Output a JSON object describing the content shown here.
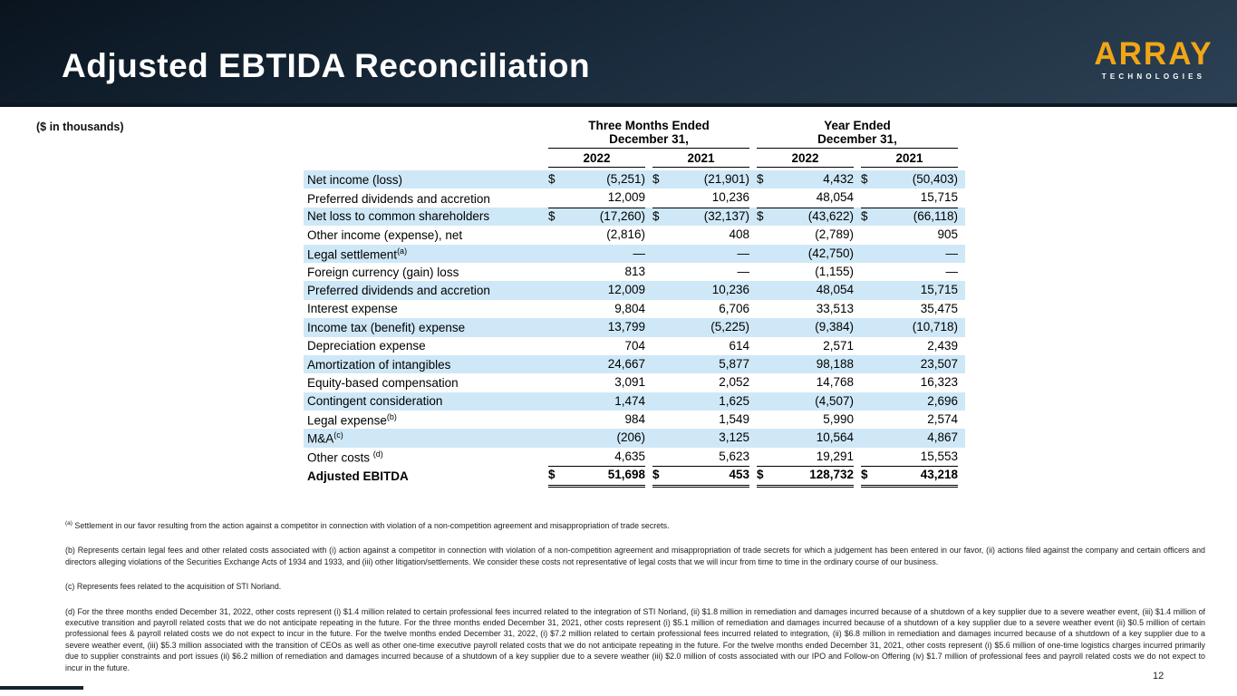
{
  "slide": {
    "title": "Adjusted EBTIDA Reconciliation",
    "units_label": "($ in thousands)",
    "page_number": "12"
  },
  "logo": {
    "name": "ARRAY",
    "sub": "TECHNOLOGIES"
  },
  "colors": {
    "band": "#18293a",
    "logo_orange": "#f2a516",
    "row_highlight": "#cfe8f7"
  },
  "table": {
    "col_groups": [
      {
        "line1": "Three Months Ended",
        "line2": "December 31,"
      },
      {
        "line1": "Year Ended",
        "line2": "December 31,"
      }
    ],
    "years": [
      "2022",
      "2021",
      "2022",
      "2021"
    ],
    "rows": [
      {
        "label": "Net income (loss)",
        "sup": "",
        "dollar": true,
        "highlight": true,
        "bold": false,
        "underline": "none",
        "values": [
          "(5,251)",
          "(21,901)",
          "4,432",
          "(50,403)"
        ]
      },
      {
        "label": "Preferred dividends and accretion",
        "sup": "",
        "dollar": false,
        "highlight": false,
        "bold": false,
        "underline": "single",
        "values": [
          "12,009",
          "10,236",
          "48,054",
          "15,715"
        ]
      },
      {
        "label": "Net loss to common shareholders",
        "sup": "",
        "dollar": true,
        "highlight": true,
        "bold": false,
        "underline": "none",
        "values": [
          "(17,260)",
          "(32,137)",
          "(43,622)",
          "(66,118)"
        ]
      },
      {
        "label": "Other income (expense), net",
        "sup": "",
        "dollar": false,
        "highlight": false,
        "bold": false,
        "underline": "none",
        "values": [
          "(2,816)",
          "408",
          "(2,789)",
          "905"
        ]
      },
      {
        "label": "Legal settlement",
        "sup": "(a)",
        "dollar": false,
        "highlight": true,
        "bold": false,
        "underline": "none",
        "values": [
          "—",
          "—",
          "(42,750)",
          "—"
        ]
      },
      {
        "label": "Foreign currency (gain) loss",
        "sup": "",
        "dollar": false,
        "highlight": false,
        "bold": false,
        "underline": "none",
        "values": [
          "813",
          "—",
          "(1,155)",
          "—"
        ]
      },
      {
        "label": "Preferred dividends and accretion",
        "sup": "",
        "dollar": false,
        "highlight": true,
        "bold": false,
        "underline": "none",
        "values": [
          "12,009",
          "10,236",
          "48,054",
          "15,715"
        ]
      },
      {
        "label": "Interest expense",
        "sup": "",
        "dollar": false,
        "highlight": false,
        "bold": false,
        "underline": "none",
        "values": [
          "9,804",
          "6,706",
          "33,513",
          "35,475"
        ]
      },
      {
        "label": "Income tax (benefit) expense",
        "sup": "",
        "dollar": false,
        "highlight": true,
        "bold": false,
        "underline": "none",
        "values": [
          "13,799",
          "(5,225)",
          "(9,384)",
          "(10,718)"
        ]
      },
      {
        "label": "Depreciation expense",
        "sup": "",
        "dollar": false,
        "highlight": false,
        "bold": false,
        "underline": "none",
        "values": [
          "704",
          "614",
          "2,571",
          "2,439"
        ]
      },
      {
        "label": "Amortization of intangibles",
        "sup": "",
        "dollar": false,
        "highlight": true,
        "bold": false,
        "underline": "none",
        "values": [
          "24,667",
          "5,877",
          "98,188",
          "23,507"
        ]
      },
      {
        "label": "Equity-based compensation",
        "sup": "",
        "dollar": false,
        "highlight": false,
        "bold": false,
        "underline": "none",
        "values": [
          "3,091",
          "2,052",
          "14,768",
          "16,323"
        ]
      },
      {
        "label": "Contingent consideration",
        "sup": "",
        "dollar": false,
        "highlight": true,
        "bold": false,
        "underline": "none",
        "values": [
          "1,474",
          "1,625",
          "(4,507)",
          "2,696"
        ]
      },
      {
        "label": "Legal expense",
        "sup": "(b)",
        "dollar": false,
        "highlight": false,
        "bold": false,
        "underline": "none",
        "values": [
          "984",
          "1,549",
          "5,990",
          "2,574"
        ]
      },
      {
        "label": "M&A",
        "sup": "(c)",
        "dollar": false,
        "highlight": true,
        "bold": false,
        "underline": "none",
        "values": [
          "(206)",
          "3,125",
          "10,564",
          "4,867"
        ]
      },
      {
        "label": "Other costs ",
        "sup": "(d)",
        "dollar": false,
        "highlight": false,
        "bold": false,
        "underline": "single",
        "values": [
          "4,635",
          "5,623",
          "19,291",
          "15,553"
        ]
      },
      {
        "label": "Adjusted EBITDA",
        "sup": "",
        "dollar": true,
        "highlight": false,
        "bold": true,
        "underline": "double",
        "values": [
          "51,698",
          "453",
          "128,732",
          "43,218"
        ]
      }
    ]
  },
  "footnotes": [
    {
      "marker": "(a)",
      "sup": true,
      "text": "Settlement in our favor resulting from the action against a competitor in connection with violation of a non-competition agreement and misappropriation of trade secrets."
    },
    {
      "marker": "(b)",
      "sup": false,
      "text": "Represents certain legal fees and other related costs associated with (i) action against a competitor in connection with violation of a non-competition agreement and misappropriation of trade secrets for which a judgement has been entered in our favor, (ii) actions filed against the company and certain officers and directors alleging violations of the Securities Exchange Acts of 1934 and 1933, and (iii) other litigation/settlements. We consider these costs not representative of legal costs that we will incur from time to time in the ordinary course of our business."
    },
    {
      "marker": "(c)",
      "sup": false,
      "text": "Represents fees related to the acquisition of STI Norland."
    },
    {
      "marker": "(d)",
      "sup": false,
      "text": "For the three months ended December 31, 2022, other costs represent (i) $1.4 million related to certain professional fees incurred related to the integration of STI Norland, (ii) $1.8 million in remediation and damages incurred because of a shutdown of a key supplier due to a severe weather event, (iii) $1.4 million of executive transition and payroll related costs that we do not anticipate repeating in the future.  For the three months ended December 31, 2021, other costs represent (i) $5.1 million of remediation and damages incurred because of a shutdown of a key supplier due to a severe weather event (ii) $0.5 million of certain professional fees & payroll related costs we do not expect to incur in the future. For the twelve months ended December 31, 2022, (i) $7.2 million related to certain professional fees incurred related to integration, (ii) $6.8 million in remediation and damages incurred because of a shutdown of a key supplier due to a severe weather event, (iii) $5.3 million associated with the transition of CEOs as well as other one-time executive payroll related costs that we do not anticipate repeating in the future.  For the twelve months ended December 31, 2021, other costs represent (i) $5.6 million of one-time logistics charges incurred primarily due to supplier constraints and port issues  (ii) $6.2 million of remediation and damages incurred because of a shutdown of a key supplier due to a severe weather (iii) $2.0 million of costs associated with our IPO and Follow-on Offering (iv) $1.7 million of professional fees and payroll related costs we do not expect to incur in the future."
    }
  ]
}
